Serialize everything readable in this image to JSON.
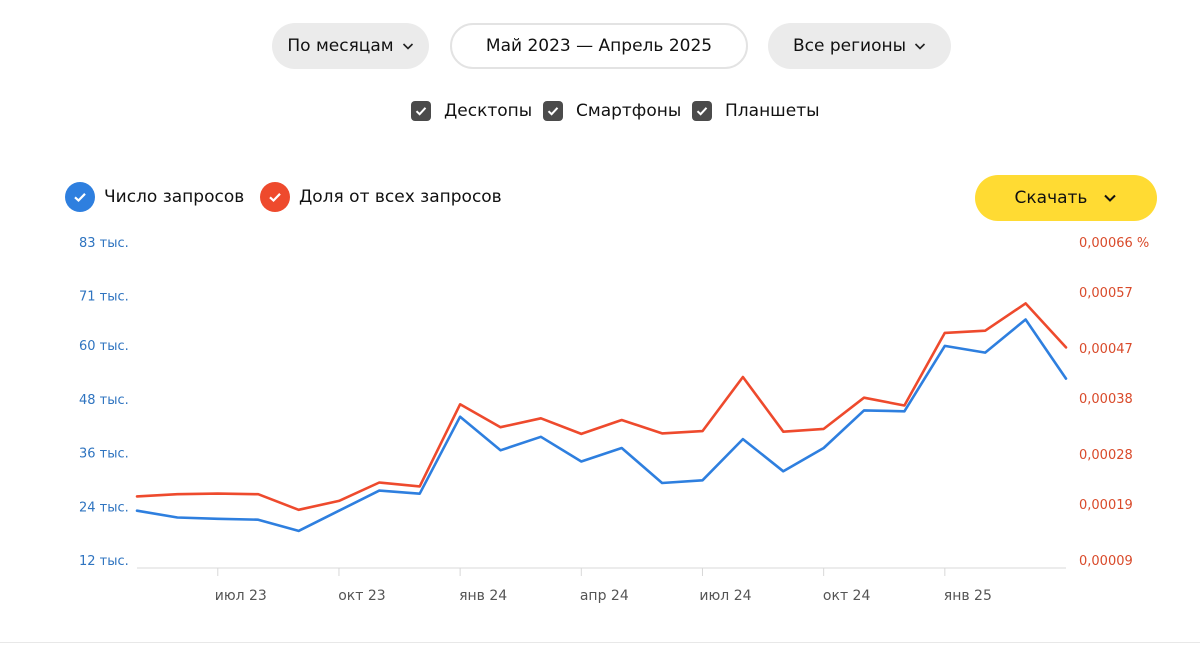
{
  "controls": {
    "period_label": "По месяцам",
    "range_label": "Май 2023 — Апрель 2025",
    "region_label": "Все регионы",
    "download_label": "Скачать"
  },
  "devices": [
    {
      "label": "Десктопы",
      "checked": true
    },
    {
      "label": "Смартфоны",
      "checked": true
    },
    {
      "label": "Планшеты",
      "checked": true
    }
  ],
  "colors": {
    "series_count": "#2e7fdf",
    "series_share": "#ee4a2d",
    "accent": "#ffdb33",
    "left_axis_text": "#2f74c0",
    "right_axis_text": "#d94a2a"
  },
  "chart_data": {
    "type": "line",
    "x": [
      "май 23",
      "июн 23",
      "июл 23",
      "авг 23",
      "сен 23",
      "окт 23",
      "ноя 23",
      "дек 23",
      "янв 24",
      "фев 24",
      "мар 24",
      "апр 24",
      "май 24",
      "июн 24",
      "июл 24",
      "авг 24",
      "сен 24",
      "окт 24",
      "ноя 24",
      "дек 24",
      "янв 25",
      "фев 25",
      "мар 25",
      "апр 25"
    ],
    "x_tick_labels": [
      "июл 23",
      "окт 23",
      "янв 24",
      "апр 24",
      "июл 24",
      "окт 24",
      "янв 25"
    ],
    "x_tick_indices": [
      2,
      5,
      8,
      11,
      14,
      17,
      20
    ],
    "series": [
      {
        "name": "Число запросов",
        "axis": "left",
        "values": [
          23000,
          21500,
          21200,
          21000,
          18500,
          23000,
          27500,
          26800,
          44000,
          36500,
          39500,
          34000,
          37000,
          29200,
          29800,
          39000,
          31800,
          37000,
          45400,
          45200,
          59800,
          58300,
          65700,
          52500
        ]
      },
      {
        "name": "Доля от всех запросов",
        "axis": "right",
        "values": [
          0.000204,
          0.000208,
          0.000209,
          0.000208,
          0.00018,
          0.000196,
          0.000229,
          0.000222,
          0.000369,
          0.000328,
          0.000344,
          0.000316,
          0.000341,
          0.000317,
          0.000321,
          0.000418,
          0.00032,
          0.000325,
          0.000381,
          0.000367,
          0.000497,
          0.000501,
          0.00055,
          0.000471
        ]
      }
    ],
    "y_left": {
      "ticks": [
        12000,
        24000,
        36000,
        48000,
        60000,
        71000,
        83000
      ],
      "tick_labels": [
        "12 тыс.",
        "24 тыс.",
        "36 тыс.",
        "48 тыс.",
        "60 тыс.",
        "71 тыс.",
        "83 тыс."
      ],
      "ylim": [
        12000,
        83000
      ]
    },
    "y_right": {
      "ticks": [
        9e-05,
        0.00019,
        0.00028,
        0.00038,
        0.00047,
        0.00057,
        0.00066
      ],
      "tick_labels": [
        "0,00009",
        "0,00019",
        "0,00028",
        "0,00038",
        "0,00047",
        "0,00057",
        "0,00066 %"
      ],
      "ylim": [
        9e-05,
        0.00066
      ]
    },
    "grid": false,
    "legend_position": "top-left"
  }
}
